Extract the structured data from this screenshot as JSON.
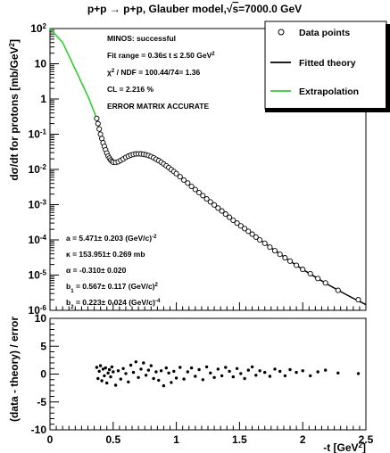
{
  "chart_data": [
    {
      "type": "scatter",
      "panel": "top",
      "title_parts": {
        "prefix": "p+p → p+p, Glauber model,",
        "root": "s",
        "suffix": "=7000.0 GeV"
      },
      "ylabel_parts": {
        "main": "dσ/dt for protons [mb/GeV",
        "sup": "2",
        "close": "]"
      },
      "ylim": [
        1e-06,
        100
      ],
      "xlim": [
        0,
        2.5
      ],
      "yscale": "log",
      "xticks": [
        0,
        0.5,
        1,
        1.5,
        2,
        2.5
      ],
      "yticks": [
        {
          "v": 100.0,
          "m": "10",
          "e": "2"
        },
        {
          "v": 10.0,
          "m": "10",
          "e": ""
        },
        {
          "v": 1.0,
          "m": "1",
          "e": ""
        },
        {
          "v": 0.1,
          "m": "10",
          "e": "-1"
        },
        {
          "v": 0.01,
          "m": "10",
          "e": "-2"
        },
        {
          "v": 0.001,
          "m": "10",
          "e": "-3"
        },
        {
          "v": 0.0001,
          "m": "10",
          "e": "-4"
        },
        {
          "v": 1e-05,
          "m": "10",
          "e": "-5"
        },
        {
          "v": 1e-06,
          "m": "10",
          "e": "-6"
        }
      ],
      "fit_info": [
        {
          "key": "minos",
          "parts": [
            {
              "t": "MINOS: successful"
            }
          ]
        },
        {
          "key": "range",
          "parts": [
            {
              "t": "Fit range = 0.36≤ t ≤ 2.50 GeV"
            },
            {
              "t": "2",
              "s": "sup"
            }
          ]
        },
        {
          "key": "chi2",
          "parts": [
            {
              "t": "χ"
            },
            {
              "t": "2",
              "s": "sup"
            },
            {
              "t": " / NDF = 100.44/74= 1.36"
            }
          ]
        },
        {
          "key": "cl",
          "parts": [
            {
              "t": "CL = 2.216 %"
            }
          ]
        },
        {
          "key": "matrix",
          "parts": [
            {
              "t": "ERROR MATRIX ACCURATE"
            }
          ]
        }
      ],
      "params": [
        {
          "key": "a",
          "parts": [
            {
              "t": "a = 5.471± 0.203 (GeV/c)"
            },
            {
              "t": "-2",
              "s": "sup"
            }
          ]
        },
        {
          "key": "kappa",
          "parts": [
            {
              "t": "κ = 153.951± 0.269 mb"
            }
          ]
        },
        {
          "key": "alpha",
          "parts": [
            {
              "t": "α = -0.310± 0.020"
            }
          ]
        },
        {
          "key": "b1",
          "parts": [
            {
              "t": "b"
            },
            {
              "t": "1",
              "s": "sub"
            },
            {
              "t": " = 0.567± 0.117 (GeV/c)"
            },
            {
              "t": "2",
              "s": "sup"
            }
          ]
        },
        {
          "key": "b2",
          "parts": [
            {
              "t": "b"
            },
            {
              "t": "2",
              "s": "sub"
            },
            {
              "t": " = 0.223± 0.024 (GeV/c)"
            },
            {
              "t": "-4",
              "s": "sup"
            }
          ]
        }
      ],
      "legend": [
        {
          "label": "Data points",
          "style": "marker"
        },
        {
          "label": "Fitted theory",
          "style": "line",
          "color": "#000000"
        },
        {
          "label": "Extrapolation",
          "style": "line",
          "color": "#33cc33"
        }
      ],
      "series": [
        {
          "name": "Data points",
          "x": [
            0.37,
            0.38,
            0.39,
            0.4,
            0.41,
            0.42,
            0.43,
            0.44,
            0.45,
            0.46,
            0.47,
            0.48,
            0.49,
            0.5,
            0.52,
            0.54,
            0.56,
            0.58,
            0.6,
            0.62,
            0.64,
            0.66,
            0.68,
            0.7,
            0.72,
            0.74,
            0.76,
            0.78,
            0.8,
            0.82,
            0.84,
            0.86,
            0.88,
            0.9,
            0.92,
            0.94,
            0.96,
            0.98,
            1.0,
            1.03,
            1.06,
            1.09,
            1.12,
            1.15,
            1.18,
            1.21,
            1.24,
            1.27,
            1.3,
            1.33,
            1.36,
            1.39,
            1.42,
            1.45,
            1.48,
            1.51,
            1.54,
            1.57,
            1.6,
            1.63,
            1.66,
            1.7,
            1.74,
            1.78,
            1.82,
            1.86,
            1.9,
            1.95,
            2.0,
            2.06,
            2.12,
            2.18,
            2.28,
            2.44
          ],
          "y": [
            0.28,
            0.2,
            0.14,
            0.1,
            0.075,
            0.057,
            0.045,
            0.036,
            0.029,
            0.024,
            0.021,
            0.0185,
            0.017,
            0.016,
            0.0158,
            0.0165,
            0.018,
            0.0198,
            0.022,
            0.0238,
            0.0255,
            0.0267,
            0.0275,
            0.0278,
            0.0276,
            0.027,
            0.026,
            0.0248,
            0.0233,
            0.0215,
            0.0196,
            0.0178,
            0.016,
            0.0143,
            0.0127,
            0.0113,
            0.0099,
            0.0087,
            0.0076,
            0.0062,
            0.005,
            0.0041,
            0.0033,
            0.0027,
            0.0022,
            0.0018,
            0.00145,
            0.0012,
            0.00098,
            0.0008,
            0.00066,
            0.00054,
            0.00044,
            0.00036,
            0.0003,
            0.00025,
            0.00021,
            0.000175,
            0.000145,
            0.00012,
            0.0001,
            8e-05,
            6.2e-05,
            4.9e-05,
            3.9e-05,
            3.1e-05,
            2.5e-05,
            1.9e-05,
            1.45e-05,
            1.1e-05,
            8e-06,
            6e-06,
            3.7e-06,
            2e-06
          ]
        },
        {
          "name": "Fitted theory",
          "x": [
            0.37,
            0.4,
            0.43,
            0.46,
            0.5,
            0.54,
            0.58,
            0.62,
            0.66,
            0.7,
            0.74,
            0.78,
            0.82,
            0.86,
            0.9,
            0.95,
            1.0,
            1.1,
            1.2,
            1.3,
            1.4,
            1.5,
            1.6,
            1.7,
            1.8,
            1.9,
            2.0,
            2.1,
            2.2,
            2.3,
            2.4,
            2.5
          ],
          "y": [
            0.28,
            0.1,
            0.045,
            0.024,
            0.016,
            0.0165,
            0.0198,
            0.0238,
            0.0267,
            0.0278,
            0.027,
            0.0248,
            0.0215,
            0.0178,
            0.0143,
            0.0106,
            0.0076,
            0.0039,
            0.002,
            0.00098,
            0.00048,
            0.00025,
            0.000145,
            8e-05,
            4.5e-05,
            2.5e-05,
            1.45e-05,
            8.8e-06,
            5.4e-06,
            3.4e-06,
            2.2e-06,
            1.45e-06
          ]
        },
        {
          "name": "Extrapolation",
          "x": [
            0.0,
            0.1,
            0.2,
            0.3,
            0.37
          ],
          "y": [
            100,
            40,
            7,
            1.2,
            0.28
          ]
        }
      ]
    },
    {
      "type": "scatter",
      "panel": "bottom",
      "ylabel": "(data - theory) / error",
      "xlabel_parts": {
        "main": "-t [GeV",
        "sup": "2",
        "close": "]"
      },
      "xlim": [
        0,
        2.5
      ],
      "ylim": [
        -10,
        10
      ],
      "xticks": [
        0,
        0.5,
        1,
        1.5,
        2,
        2.5
      ],
      "yticks": [
        10,
        5,
        0,
        -5,
        -10
      ],
      "series": [
        {
          "name": "residuals",
          "x": [
            0.37,
            0.38,
            0.39,
            0.4,
            0.41,
            0.42,
            0.43,
            0.44,
            0.45,
            0.46,
            0.47,
            0.48,
            0.49,
            0.5,
            0.52,
            0.54,
            0.56,
            0.58,
            0.6,
            0.62,
            0.64,
            0.66,
            0.68,
            0.7,
            0.72,
            0.74,
            0.76,
            0.78,
            0.8,
            0.82,
            0.84,
            0.86,
            0.88,
            0.9,
            0.92,
            0.94,
            0.96,
            0.98,
            1.0,
            1.03,
            1.06,
            1.09,
            1.12,
            1.15,
            1.18,
            1.21,
            1.24,
            1.27,
            1.3,
            1.33,
            1.36,
            1.39,
            1.42,
            1.45,
            1.48,
            1.51,
            1.54,
            1.57,
            1.6,
            1.63,
            1.66,
            1.7,
            1.74,
            1.78,
            1.82,
            1.86,
            1.9,
            1.95,
            2.0,
            2.06,
            2.12,
            2.18,
            2.28,
            2.44
          ],
          "y": [
            1.2,
            -0.8,
            0.5,
            1.5,
            -1.2,
            0.9,
            -0.3,
            1.1,
            -1.6,
            0.2,
            0.8,
            -0.5,
            1.3,
            0.4,
            -2.0,
            0.6,
            -0.9,
            1.0,
            0.1,
            -1.4,
            1.6,
            0.3,
            2.2,
            -0.6,
            0.9,
            2.0,
            -0.2,
            0.7,
            1.5,
            -0.8,
            0.4,
            -1.1,
            0.6,
            -2.1,
            1.1,
            0.2,
            -1.5,
            0.5,
            -0.7,
            1.2,
            -0.9,
            0.4,
            1.1,
            -0.4,
            0.8,
            -1.0,
            1.3,
            0.2,
            -0.6,
            0.9,
            -0.3,
            1.2,
            0.5,
            -0.5,
            1.0,
            0.1,
            -0.8,
            0.7,
            1.3,
            -0.2,
            0.6,
            0.3,
            -0.4,
            0.9,
            0.5,
            -0.3,
            0.8,
            0.3,
            0.6,
            -0.3,
            0.4,
            0.7,
            0.2,
            0.1
          ]
        }
      ]
    }
  ]
}
